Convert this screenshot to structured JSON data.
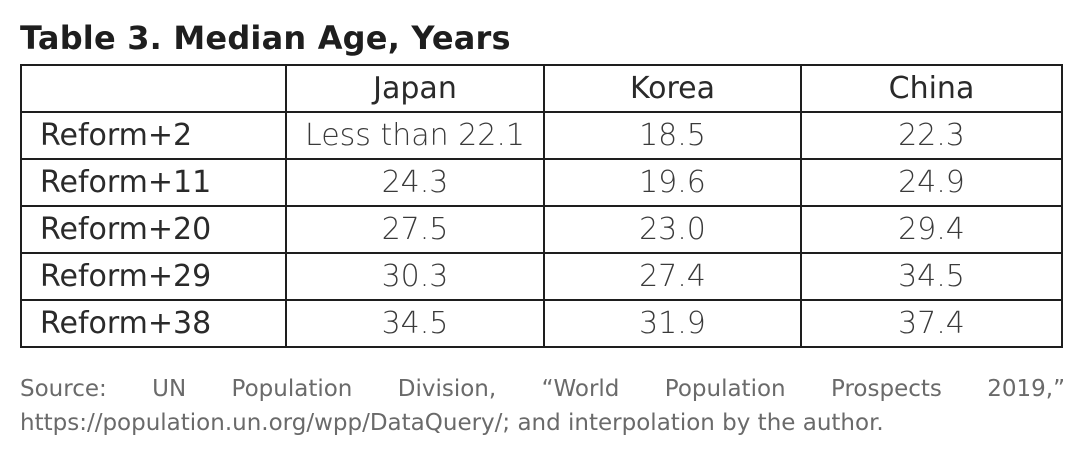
{
  "table": {
    "title": "Table 3. Median Age, Years",
    "columns": [
      "",
      "Japan",
      "Korea",
      "China"
    ],
    "rows": [
      {
        "label": "Reform+2",
        "values": [
          "Less than 22.1",
          "18.5",
          "22.3"
        ]
      },
      {
        "label": "Reform+11",
        "values": [
          "24.3",
          "19.6",
          "24.9"
        ]
      },
      {
        "label": "Reform+20",
        "values": [
          "27.5",
          "23.0",
          "29.4"
        ]
      },
      {
        "label": "Reform+29",
        "values": [
          "30.3",
          "27.4",
          "34.5"
        ]
      },
      {
        "label": "Reform+38",
        "values": [
          "34.5",
          "31.9",
          "37.4"
        ]
      }
    ]
  },
  "source": {
    "text": "Source: UN Population Division, “World Population Prospects 2019,” https://population.un.org/wpp/DataQuery/; and interpolation by the author."
  }
}
